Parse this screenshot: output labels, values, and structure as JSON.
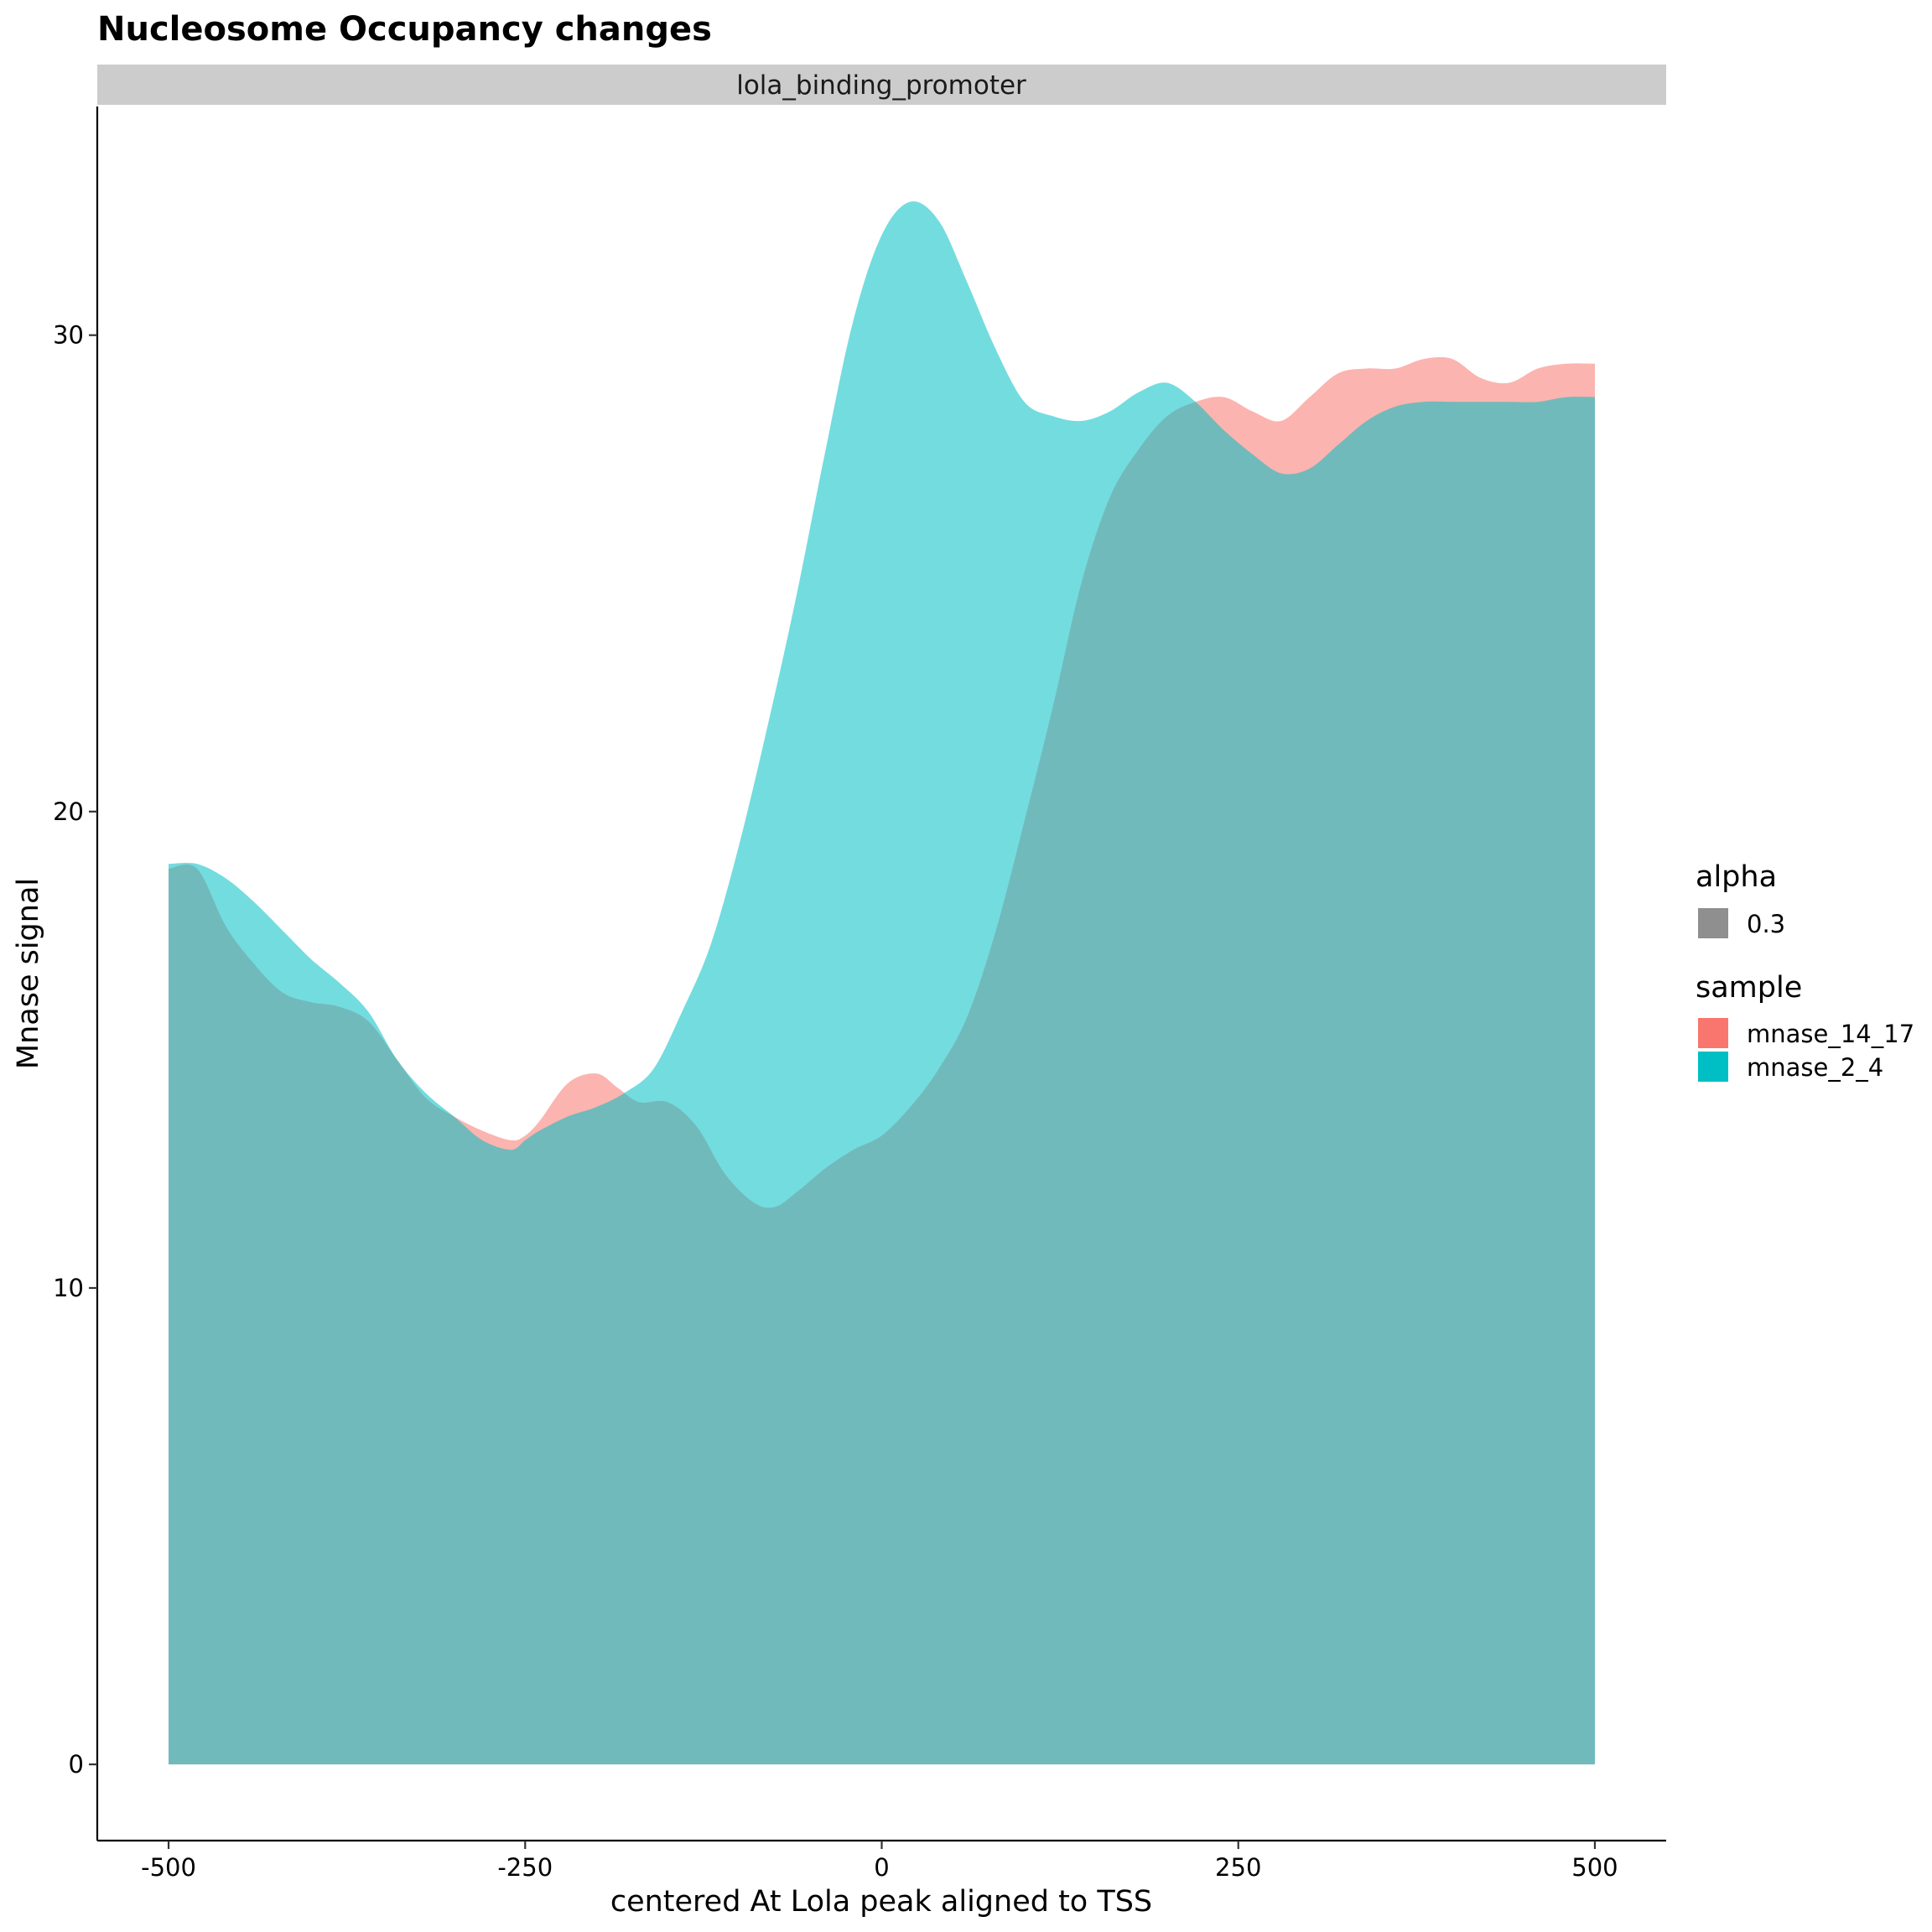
{
  "chart_data": {
    "type": "area",
    "title": "Nucleosome Occupancy changes",
    "facet": "lola_binding_promoter",
    "xlabel": "centered At Lola peak aligned to TSS",
    "ylabel": "Mnase signal",
    "xlim": [
      -550,
      550
    ],
    "ylim": [
      -1.6,
      34.8
    ],
    "x_ticks": [
      -500,
      -250,
      0,
      250,
      500
    ],
    "x_tick_labels": [
      "-500",
      "-250",
      "0",
      "250",
      "500"
    ],
    "y_ticks": [
      0,
      10,
      20,
      30
    ],
    "y_tick_labels": [
      "0",
      "10",
      "20",
      "30"
    ],
    "grid": false,
    "fill_opacity": 0.55,
    "colors": {
      "mnase_14_17": "#F8766D",
      "mnase_2_4": "#00BFC4",
      "alpha_key": "#8f8f8f"
    },
    "legend": {
      "position": "right",
      "alpha": {
        "title": "alpha",
        "items": [
          {
            "label": "0.3"
          }
        ]
      },
      "sample": {
        "title": "sample",
        "items": [
          {
            "label": "mnase_14_17"
          },
          {
            "label": "mnase_2_4"
          }
        ]
      }
    },
    "series": [
      {
        "name": "mnase_14_17",
        "x": [
          -500,
          -480,
          -460,
          -440,
          -420,
          -400,
          -380,
          -360,
          -340,
          -320,
          -300,
          -280,
          -260,
          -250,
          -240,
          -220,
          -200,
          -185,
          -170,
          -150,
          -130,
          -110,
          -90,
          -75,
          -60,
          -40,
          -20,
          0,
          20,
          40,
          60,
          80,
          100,
          120,
          140,
          160,
          180,
          200,
          220,
          240,
          260,
          280,
          300,
          320,
          340,
          360,
          380,
          400,
          420,
          440,
          460,
          480,
          500
        ],
        "y": [
          18.8,
          18.8,
          17.6,
          16.8,
          16.2,
          16.0,
          15.9,
          15.6,
          14.8,
          14.0,
          13.6,
          13.3,
          13.1,
          13.2,
          13.5,
          14.3,
          14.5,
          14.2,
          13.9,
          13.9,
          13.4,
          12.4,
          11.8,
          11.7,
          12.0,
          12.5,
          12.9,
          13.2,
          13.8,
          14.6,
          15.7,
          17.5,
          19.8,
          22.2,
          24.8,
          26.6,
          27.6,
          28.3,
          28.6,
          28.7,
          28.4,
          28.2,
          28.7,
          29.2,
          29.3,
          29.3,
          29.5,
          29.5,
          29.1,
          29.0,
          29.3,
          29.4,
          29.4
        ]
      },
      {
        "name": "mnase_2_4",
        "x": [
          -500,
          -480,
          -460,
          -440,
          -420,
          -400,
          -380,
          -360,
          -340,
          -320,
          -300,
          -280,
          -260,
          -250,
          -240,
          -220,
          -200,
          -180,
          -160,
          -140,
          -120,
          -100,
          -80,
          -60,
          -40,
          -20,
          0,
          20,
          40,
          60,
          80,
          100,
          120,
          140,
          160,
          180,
          200,
          220,
          240,
          260,
          280,
          300,
          320,
          340,
          360,
          380,
          400,
          420,
          440,
          460,
          480,
          500
        ],
        "y": [
          18.9,
          18.9,
          18.6,
          18.1,
          17.5,
          16.9,
          16.4,
          15.8,
          14.8,
          14.1,
          13.6,
          13.1,
          12.9,
          13.1,
          13.3,
          13.6,
          13.8,
          14.1,
          14.6,
          15.8,
          17.2,
          19.3,
          21.8,
          24.5,
          27.5,
          30.3,
          32.1,
          32.8,
          32.4,
          31.1,
          29.7,
          28.6,
          28.3,
          28.2,
          28.4,
          28.8,
          29.0,
          28.6,
          28.0,
          27.5,
          27.1,
          27.2,
          27.7,
          28.2,
          28.5,
          28.6,
          28.6,
          28.6,
          28.6,
          28.6,
          28.7,
          28.7
        ]
      }
    ]
  }
}
